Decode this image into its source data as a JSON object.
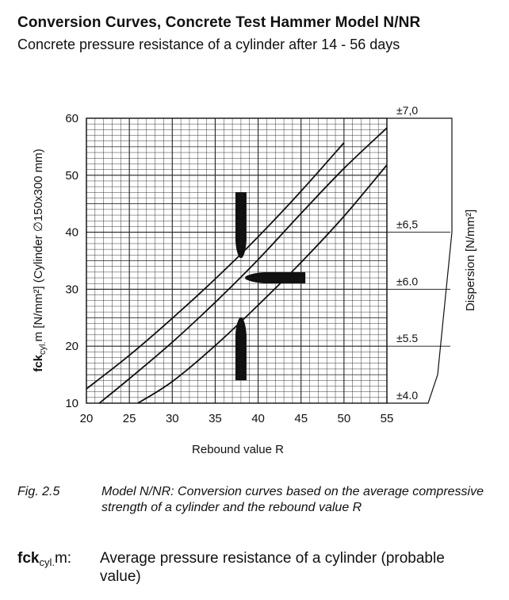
{
  "title": "Conversion Curves, Concrete Test Hammer Model N/NR",
  "subtitle": "Concrete pressure resistance of a cylinder after 14 - 56 days",
  "caption": {
    "number": "Fig. 2.5",
    "text": "Model N/NR: Conversion curves based on the average compressive strength of a cylinder and the rebound value R"
  },
  "legend": {
    "symbol_main": "fck",
    "symbol_sub": "cyl.",
    "symbol_tail": "m:",
    "definition": "Average pressure resistance of a cylinder (probable value)"
  },
  "chart_data": {
    "type": "line",
    "title": "Conversion Curves, Concrete Test Hammer Model N/NR",
    "subtitle": "Concrete pressure resistance of a cylinder after 14 - 56 days",
    "xlabel": "Rebound value R",
    "ylabel_main": "fck",
    "ylabel_sub": "cyl.",
    "ylabel_rest": "m [N/mm²] (Cylinder ∅150x300 mm)",
    "right_axis_label": "Dispersion [N/mm²]",
    "xlim": [
      20,
      55
    ],
    "ylim": [
      10,
      60
    ],
    "x_ticks": [
      20,
      25,
      30,
      35,
      40,
      45,
      50,
      55
    ],
    "y_ticks": [
      10,
      20,
      30,
      40,
      50,
      60
    ],
    "grid": true,
    "series": [
      {
        "name": "",
        "x": [
          20,
          25,
          30,
          35,
          40,
          45,
          50
        ],
        "y": [
          12.5,
          18.4,
          24.9,
          31.8,
          39.2,
          47.2,
          55.7
        ]
      },
      {
        "name": "",
        "x": [
          21.5,
          25,
          30,
          35,
          40,
          45,
          50,
          55
        ],
        "y": [
          10.0,
          14.3,
          20.7,
          27.7,
          35.2,
          43.3,
          51.2,
          58.3
        ]
      },
      {
        "name": "",
        "x": [
          26,
          30,
          35,
          40,
          45,
          50,
          55
        ],
        "y": [
          10.0,
          13.8,
          20.1,
          27.2,
          34.7,
          42.8,
          51.8
        ]
      }
    ],
    "dispersion_labels": [
      {
        "label": "±7,0",
        "y": 60
      },
      {
        "label": "±6,5",
        "y": 40
      },
      {
        "label": "±6.0",
        "y": 30
      },
      {
        "label": "±5.5",
        "y": 20
      },
      {
        "label": "±4.0",
        "y": 10
      }
    ],
    "annotations": [
      {
        "type": "hammer-pointing-down",
        "x": 38,
        "y_from": 47,
        "y_to": 35.5
      },
      {
        "type": "hammer-pointing-left",
        "y": 32,
        "x_from": 45.5,
        "x_to": 38.5
      },
      {
        "type": "hammer-pointing-up",
        "x": 38,
        "y_from": 14,
        "y_to": 25
      }
    ]
  }
}
